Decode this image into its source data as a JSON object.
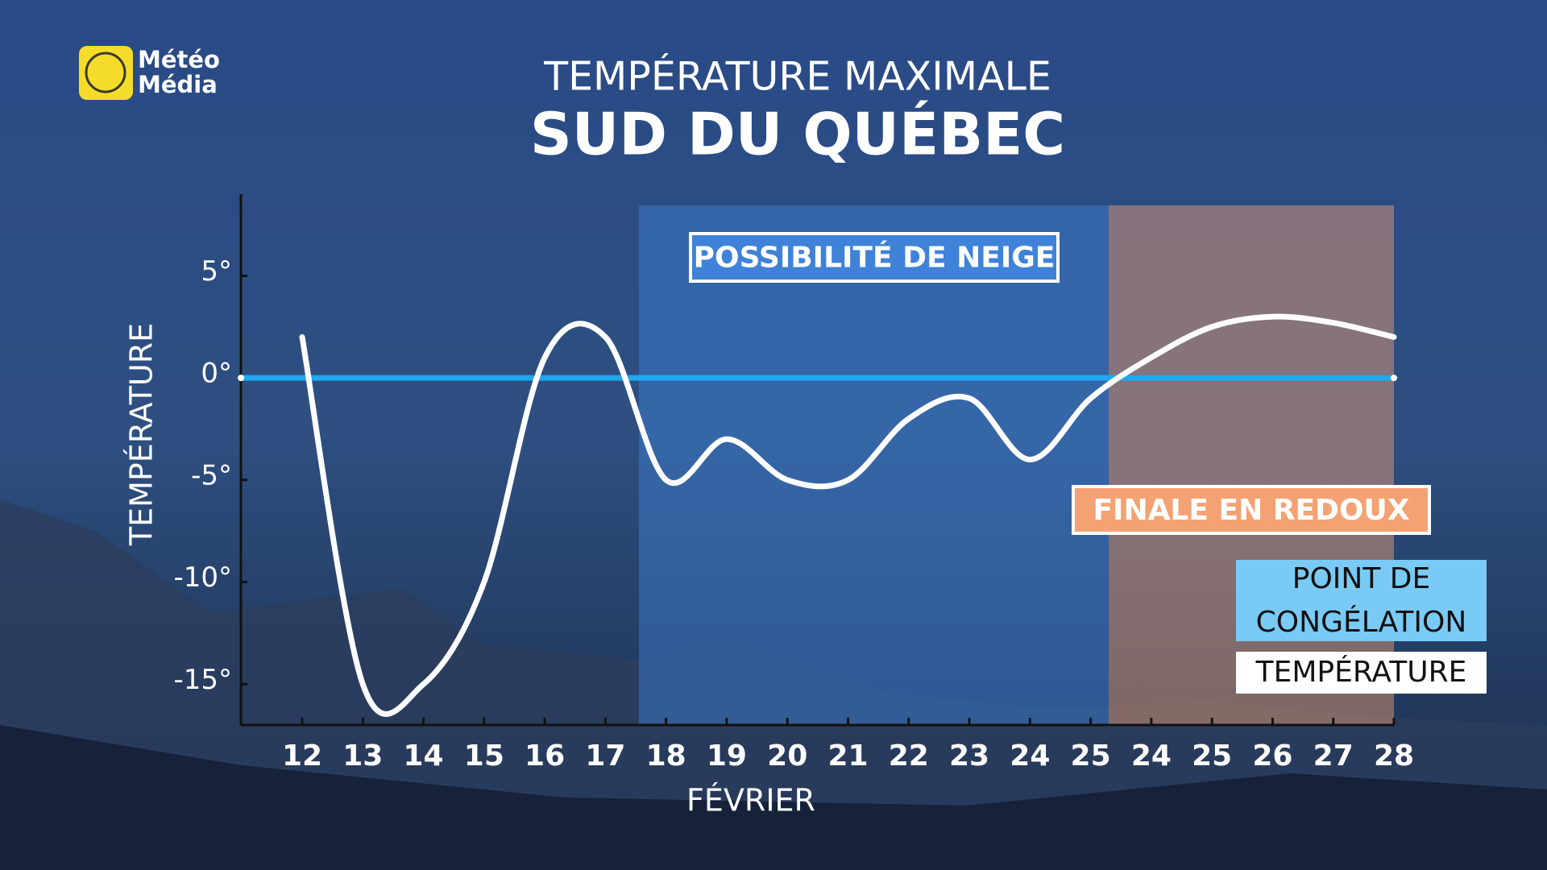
{
  "chart_data": {
    "type": "line",
    "logo": [
      "Météo",
      "Média"
    ],
    "title": "TEMPÉRATURE MAXIMALE",
    "subtitle": "SUD DU QUÉBEC",
    "x_label": "FÉVRIER",
    "y_label": "TEMPÉRATURE",
    "categories": [
      "12",
      "13",
      "14",
      "15",
      "16",
      "17",
      "18",
      "19",
      "20",
      "21",
      "22",
      "23",
      "24",
      "25",
      "24",
      "25",
      "26",
      "27",
      "28"
    ],
    "series": [
      {
        "name": "TEMPÉRATURE",
        "color": "#ffffff",
        "values": [
          2,
          -15,
          -15,
          -10,
          1,
          2,
          -5,
          -3,
          -5,
          -5,
          -2,
          -1,
          -4,
          -1,
          1,
          2.5,
          3,
          2.7,
          2
        ]
      }
    ],
    "reference_lines": [
      {
        "name": "POINT DE CONGÉLATION",
        "value": 0,
        "color": "#1fa8ee"
      }
    ],
    "annotations": [
      {
        "text": "POSSIBILITÉ DE NEIGE",
        "color": "#3f82d8"
      },
      {
        "text": "FINALE EN REDOUX",
        "color": "#f4a273"
      }
    ],
    "ylim": [
      -17,
      9
    ],
    "yticks": [
      {
        "value": -15,
        "label": "-15°"
      },
      {
        "value": -10,
        "label": "-10°"
      },
      {
        "value": -5,
        "label": "-5°"
      },
      {
        "value": 0,
        "label": "0°"
      },
      {
        "value": 5,
        "label": "5°"
      }
    ]
  }
}
